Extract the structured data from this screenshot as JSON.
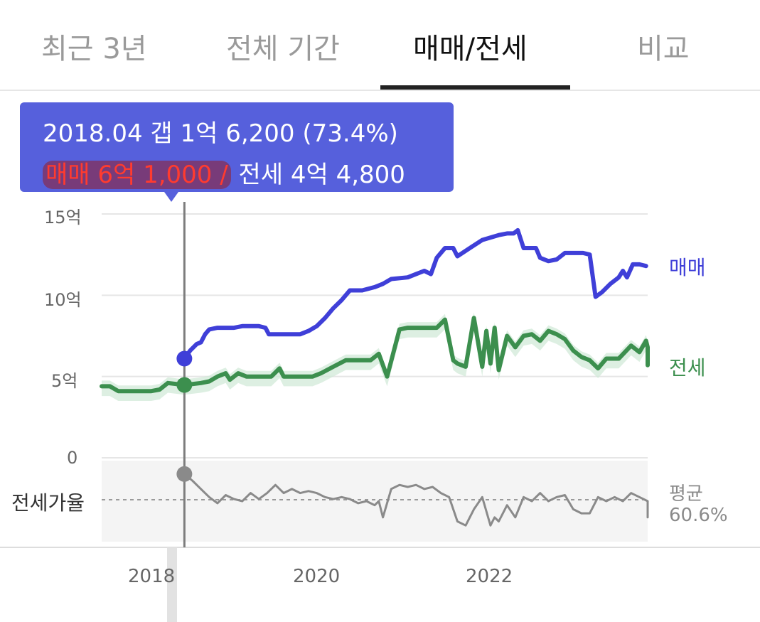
{
  "tabs": [
    {
      "label": "최근 3년",
      "active": false
    },
    {
      "label": "전체 기간",
      "active": false
    },
    {
      "label": "매매/전세",
      "active": true
    },
    {
      "label": "비교",
      "active": false
    }
  ],
  "tooltip": {
    "line1": "2018.04  갭 1억 6,200 (73.4%)",
    "sale": "매매 6억 1,000 /",
    "jeonse": " 전세 4억 4,800"
  },
  "colors": {
    "sale": "#3f3fd8",
    "jeonse": "#3c8f4e",
    "ratio": "#8a8a8a",
    "tooltip": "#5660dc"
  },
  "chart_data": {
    "type": "line",
    "y_unit": "억",
    "ylim": [
      0,
      15
    ],
    "yticks": [
      {
        "value": 15,
        "label": "15억"
      },
      {
        "value": 10,
        "label": "10억"
      },
      {
        "value": 5,
        "label": "5억"
      },
      {
        "value": 0,
        "label": "0"
      }
    ],
    "xlim": [
      2017.3,
      2023.9
    ],
    "xticks": [
      {
        "value": 2018,
        "label": "2018"
      },
      {
        "value": 2020,
        "label": "2020"
      },
      {
        "value": 2022,
        "label": "2022"
      }
    ],
    "selected": {
      "x": 2018.3,
      "sale": 6.1,
      "jeonse": 4.48
    },
    "series": [
      {
        "name": "매매",
        "color": "#3f3fd8",
        "start": 2018.3,
        "values": [
          [
            2018.3,
            6.1
          ],
          [
            2018.37,
            6.6
          ],
          [
            2018.45,
            7.0
          ],
          [
            2018.5,
            7.1
          ],
          [
            2018.55,
            7.6
          ],
          [
            2018.6,
            7.9
          ],
          [
            2018.7,
            8.0
          ],
          [
            2018.9,
            8.0
          ],
          [
            2019.0,
            8.1
          ],
          [
            2019.2,
            8.1
          ],
          [
            2019.28,
            8.0
          ],
          [
            2019.32,
            7.6
          ],
          [
            2019.5,
            7.6
          ],
          [
            2019.7,
            7.6
          ],
          [
            2019.8,
            7.8
          ],
          [
            2019.9,
            8.1
          ],
          [
            2020.0,
            8.6
          ],
          [
            2020.1,
            9.2
          ],
          [
            2020.2,
            9.7
          ],
          [
            2020.3,
            10.3
          ],
          [
            2020.45,
            10.3
          ],
          [
            2020.6,
            10.5
          ],
          [
            2020.7,
            10.7
          ],
          [
            2020.8,
            11.0
          ],
          [
            2021.0,
            11.1
          ],
          [
            2021.1,
            11.3
          ],
          [
            2021.2,
            11.5
          ],
          [
            2021.28,
            11.3
          ],
          [
            2021.35,
            12.3
          ],
          [
            2021.45,
            12.9
          ],
          [
            2021.55,
            12.9
          ],
          [
            2021.6,
            12.4
          ],
          [
            2021.75,
            12.9
          ],
          [
            2021.9,
            13.4
          ],
          [
            2022.1,
            13.7
          ],
          [
            2022.2,
            13.8
          ],
          [
            2022.28,
            13.8
          ],
          [
            2022.33,
            14.0
          ],
          [
            2022.4,
            12.9
          ],
          [
            2022.55,
            12.9
          ],
          [
            2022.6,
            12.3
          ],
          [
            2022.7,
            12.1
          ],
          [
            2022.8,
            12.2
          ],
          [
            2022.9,
            12.6
          ],
          [
            2023.0,
            12.6
          ],
          [
            2023.12,
            12.6
          ],
          [
            2023.2,
            12.5
          ],
          [
            2023.27,
            9.9
          ],
          [
            2023.35,
            10.2
          ],
          [
            2023.45,
            10.7
          ],
          [
            2023.55,
            11.1
          ],
          [
            2023.6,
            11.5
          ],
          [
            2023.65,
            11.1
          ],
          [
            2023.72,
            11.9
          ],
          [
            2023.8,
            11.9
          ],
          [
            2023.88,
            11.8
          ]
        ]
      },
      {
        "name": "전세",
        "color": "#3c8f4e",
        "values": [
          [
            2017.3,
            4.4
          ],
          [
            2017.4,
            4.4
          ],
          [
            2017.5,
            4.1
          ],
          [
            2017.9,
            4.1
          ],
          [
            2018.0,
            4.2
          ],
          [
            2018.1,
            4.6
          ],
          [
            2018.3,
            4.48
          ],
          [
            2018.5,
            4.6
          ],
          [
            2018.6,
            4.7
          ],
          [
            2018.7,
            5.0
          ],
          [
            2018.8,
            5.2
          ],
          [
            2018.85,
            4.8
          ],
          [
            2018.95,
            5.2
          ],
          [
            2019.05,
            5.0
          ],
          [
            2019.2,
            5.0
          ],
          [
            2019.35,
            5.0
          ],
          [
            2019.45,
            5.5
          ],
          [
            2019.5,
            5.0
          ],
          [
            2019.85,
            5.0
          ],
          [
            2019.95,
            5.2
          ],
          [
            2020.1,
            5.6
          ],
          [
            2020.25,
            6.0
          ],
          [
            2020.35,
            6.0
          ],
          [
            2020.45,
            6.0
          ],
          [
            2020.55,
            6.0
          ],
          [
            2020.65,
            6.4
          ],
          [
            2020.75,
            5.0
          ],
          [
            2020.9,
            7.9
          ],
          [
            2021.0,
            8.0
          ],
          [
            2021.15,
            8.0
          ],
          [
            2021.35,
            8.0
          ],
          [
            2021.45,
            8.5
          ],
          [
            2021.55,
            6.0
          ],
          [
            2021.6,
            5.8
          ],
          [
            2021.7,
            5.6
          ],
          [
            2021.8,
            8.6
          ],
          [
            2021.9,
            5.6
          ],
          [
            2021.95,
            7.8
          ],
          [
            2022.0,
            5.8
          ],
          [
            2022.05,
            8.0
          ],
          [
            2022.1,
            5.4
          ],
          [
            2022.2,
            7.5
          ],
          [
            2022.3,
            6.8
          ],
          [
            2022.4,
            7.5
          ],
          [
            2022.5,
            7.6
          ],
          [
            2022.6,
            7.2
          ],
          [
            2022.7,
            7.8
          ],
          [
            2022.8,
            7.6
          ],
          [
            2022.9,
            7.3
          ],
          [
            2023.0,
            6.6
          ],
          [
            2023.1,
            6.2
          ],
          [
            2023.2,
            6.0
          ],
          [
            2023.3,
            5.5
          ],
          [
            2023.4,
            6.1
          ],
          [
            2023.55,
            6.1
          ],
          [
            2023.7,
            6.9
          ],
          [
            2023.8,
            6.5
          ],
          [
            2023.88,
            7.2
          ],
          [
            2023.93,
            6.8
          ],
          [
            2023.96,
            6.2
          ],
          [
            2024.0,
            5.7
          ]
        ]
      },
      {
        "name": "전세가율",
        "color": "#8a8a8a",
        "unit": "%",
        "values": [
          [
            2018.3,
            73.4
          ],
          [
            2018.4,
            70
          ],
          [
            2018.5,
            66
          ],
          [
            2018.6,
            62
          ],
          [
            2018.7,
            59
          ],
          [
            2018.8,
            63
          ],
          [
            2018.9,
            61
          ],
          [
            2019.0,
            60
          ],
          [
            2019.1,
            64
          ],
          [
            2019.2,
            61
          ],
          [
            2019.3,
            64
          ],
          [
            2019.4,
            68
          ],
          [
            2019.5,
            64
          ],
          [
            2019.6,
            66
          ],
          [
            2019.7,
            64
          ],
          [
            2019.8,
            65
          ],
          [
            2019.9,
            64
          ],
          [
            2020.0,
            62
          ],
          [
            2020.1,
            61
          ],
          [
            2020.2,
            62
          ],
          [
            2020.3,
            61
          ],
          [
            2020.4,
            59
          ],
          [
            2020.5,
            60
          ],
          [
            2020.6,
            58
          ],
          [
            2020.65,
            60
          ],
          [
            2020.7,
            52
          ],
          [
            2020.8,
            66
          ],
          [
            2020.9,
            68
          ],
          [
            2021.0,
            67
          ],
          [
            2021.1,
            68
          ],
          [
            2021.2,
            66
          ],
          [
            2021.3,
            67
          ],
          [
            2021.4,
            64
          ],
          [
            2021.5,
            62
          ],
          [
            2021.6,
            50
          ],
          [
            2021.7,
            48
          ],
          [
            2021.8,
            56
          ],
          [
            2021.9,
            62
          ],
          [
            2022.0,
            48
          ],
          [
            2022.05,
            52
          ],
          [
            2022.1,
            50
          ],
          [
            2022.2,
            58
          ],
          [
            2022.3,
            52
          ],
          [
            2022.4,
            62
          ],
          [
            2022.5,
            60
          ],
          [
            2022.6,
            64
          ],
          [
            2022.7,
            60
          ],
          [
            2022.8,
            62
          ],
          [
            2022.9,
            63
          ],
          [
            2023.0,
            56
          ],
          [
            2023.1,
            54
          ],
          [
            2023.2,
            54
          ],
          [
            2023.3,
            62
          ],
          [
            2023.4,
            60
          ],
          [
            2023.5,
            62
          ],
          [
            2023.6,
            60
          ],
          [
            2023.7,
            64
          ],
          [
            2023.8,
            62
          ],
          [
            2023.9,
            60
          ],
          [
            2023.95,
            56
          ],
          [
            2024.0,
            52
          ]
        ]
      }
    ],
    "average": {
      "label": "평균",
      "value_label": "60.6%",
      "value": 60.6
    },
    "ratio_axis_label": "전세가율",
    "legend_placement": "right"
  }
}
